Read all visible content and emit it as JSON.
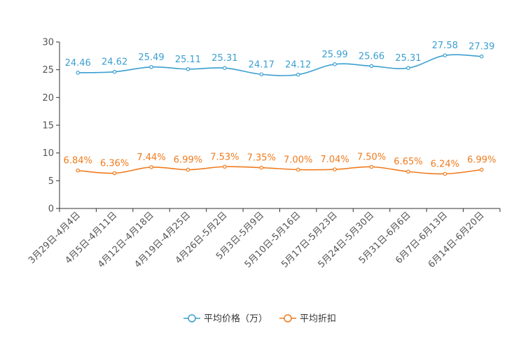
{
  "chart_data": {
    "type": "line",
    "title": "",
    "xlabel": "",
    "ylabel": "",
    "ylim": [
      0,
      30
    ],
    "yticks": [
      0,
      5,
      10,
      15,
      20,
      25,
      30
    ],
    "grid": false,
    "legend_position": "bottom",
    "categories": [
      "3月29日-4月4日",
      "4月5日-4月11日",
      "4月12日-4月18日",
      "4月19日-4月25日",
      "4月26日-5月2日",
      "5月3日-5月9日",
      "5月10日-5月16日",
      "5月17日-5月23日",
      "5月24日-5月30日",
      "5月31日-6月6日",
      "6月7日-6月13日",
      "6月14日-6月20日"
    ],
    "series": [
      {
        "name": "平均价格（万）",
        "color": "#3b9fd1",
        "values": [
          24.46,
          24.62,
          25.49,
          25.11,
          25.31,
          24.17,
          24.12,
          25.99,
          25.66,
          25.31,
          27.58,
          27.39
        ],
        "labels": [
          "24.46",
          "24.62",
          "25.49",
          "25.11",
          "25.31",
          "24.17",
          "24.12",
          "25.99",
          "25.66",
          "25.31",
          "27.58",
          "27.39"
        ]
      },
      {
        "name": "平均折扣",
        "color": "#f07b1e",
        "values": [
          6.84,
          6.36,
          7.44,
          6.99,
          7.53,
          7.35,
          7.0,
          7.04,
          7.5,
          6.65,
          6.24,
          6.99
        ],
        "labels": [
          "6.84%",
          "6.36%",
          "7.44%",
          "6.99%",
          "7.53%",
          "7.35%",
          "7.00%",
          "7.04%",
          "7.50%",
          "6.65%",
          "6.24%",
          "6.99%"
        ]
      }
    ]
  }
}
